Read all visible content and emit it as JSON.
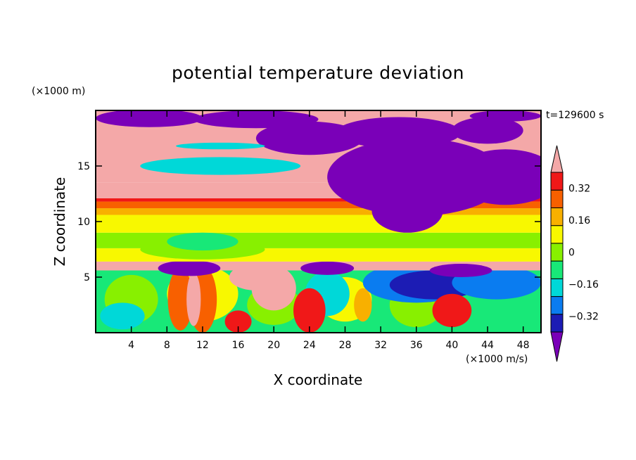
{
  "chart_data": {
    "type": "heatmap",
    "title": "potential temperature deviation",
    "xlabel": "X coordinate",
    "ylabel": "Z coordinate",
    "x_unit": "(×1000 m/s)",
    "y_unit": "(×1000 m)",
    "time_label": "t=129600 s",
    "xlim": [
      0,
      50
    ],
    "ylim": [
      0,
      20
    ],
    "x_ticks": [
      "4",
      "8",
      "12",
      "16",
      "20",
      "24",
      "28",
      "32",
      "36",
      "40",
      "44",
      "48"
    ],
    "y_ticks": [
      "5",
      "10",
      "15"
    ],
    "colorbar": {
      "levels": [
        -0.4,
        -0.32,
        -0.24,
        -0.16,
        -0.08,
        0,
        0.08,
        0.16,
        0.24,
        0.32,
        0.4
      ],
      "labels": [
        "0.32",
        "0.16",
        "0",
        "−0.16",
        "−0.32"
      ],
      "colors": [
        "#7a00b8",
        "#1c1cb4",
        "#0a7cf0",
        "#00d8d8",
        "#18e878",
        "#88f000",
        "#f8f800",
        "#f8b000",
        "#f86000",
        "#f01818",
        "#f4a8a8"
      ]
    }
  }
}
